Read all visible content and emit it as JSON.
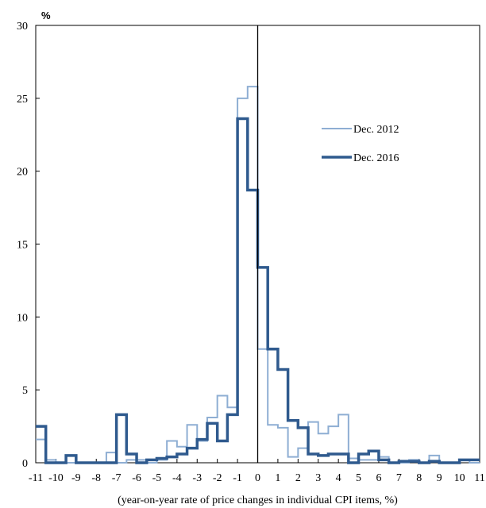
{
  "chart_data": {
    "type": "line",
    "step": true,
    "unit_label": "%",
    "xlabel": "(year-on-year rate of price changes in individual CPI items,  %)",
    "ylabel": "",
    "xlim": [
      -11,
      11
    ],
    "ylim": [
      0,
      30
    ],
    "yticks": [
      0,
      5,
      10,
      15,
      20,
      25,
      30
    ],
    "xticks": [
      -11,
      -10,
      -9,
      -8,
      -7,
      -6,
      -5,
      -4,
      -3,
      -2,
      -1,
      0,
      1,
      2,
      3,
      4,
      5,
      6,
      7,
      8,
      9,
      10,
      11
    ],
    "zero_line": 0,
    "legend_position": "upper-right",
    "bin_edges": [
      -11.0,
      -10.5,
      -10.0,
      -9.5,
      -9.0,
      -8.5,
      -8.0,
      -7.5,
      -7.0,
      -6.5,
      -6.0,
      -5.5,
      -5.0,
      -4.5,
      -4.0,
      -3.5,
      -3.0,
      -2.5,
      -2.0,
      -1.5,
      -1.0,
      -0.5,
      0.0,
      0.5,
      1.0,
      1.5,
      2.0,
      2.5,
      3.0,
      3.5,
      4.0,
      4.5,
      5.0,
      5.5,
      6.0,
      6.5,
      7.0,
      7.5,
      8.0,
      8.5,
      9.0,
      9.5,
      10.0,
      10.5,
      11.0
    ],
    "series": [
      {
        "name": "Dec. 2012",
        "color": "#8eaed3",
        "stroke": "thin",
        "values": [
          1.6,
          0.2,
          0.0,
          0.0,
          0.0,
          0.0,
          0.0,
          0.7,
          0.0,
          0.2,
          0.2,
          0.0,
          0.2,
          1.5,
          1.1,
          2.6,
          1.5,
          3.1,
          4.6,
          3.8,
          25.0,
          25.8,
          7.8,
          2.6,
          2.4,
          0.4,
          1.0,
          2.8,
          2.0,
          2.5,
          3.3,
          0.3,
          0.2,
          0.2,
          0.4,
          0.0,
          0.0,
          0.2,
          0.0,
          0.5,
          0.0,
          0.0,
          0.2,
          0.0
        ]
      },
      {
        "name": "Dec. 2016",
        "color": "#2f5a8e",
        "stroke": "thick",
        "values": [
          2.5,
          0.0,
          0.0,
          0.5,
          0.0,
          0.0,
          0.0,
          0.0,
          3.3,
          0.6,
          0.0,
          0.2,
          0.3,
          0.4,
          0.6,
          1.0,
          1.6,
          2.7,
          1.5,
          3.3,
          23.6,
          18.7,
          13.4,
          7.8,
          6.4,
          2.9,
          2.4,
          0.6,
          0.5,
          0.6,
          0.6,
          0.0,
          0.6,
          0.8,
          0.2,
          0.0,
          0.1,
          0.1,
          0.0,
          0.1,
          0.0,
          0.0,
          0.2,
          0.2
        ]
      }
    ]
  }
}
